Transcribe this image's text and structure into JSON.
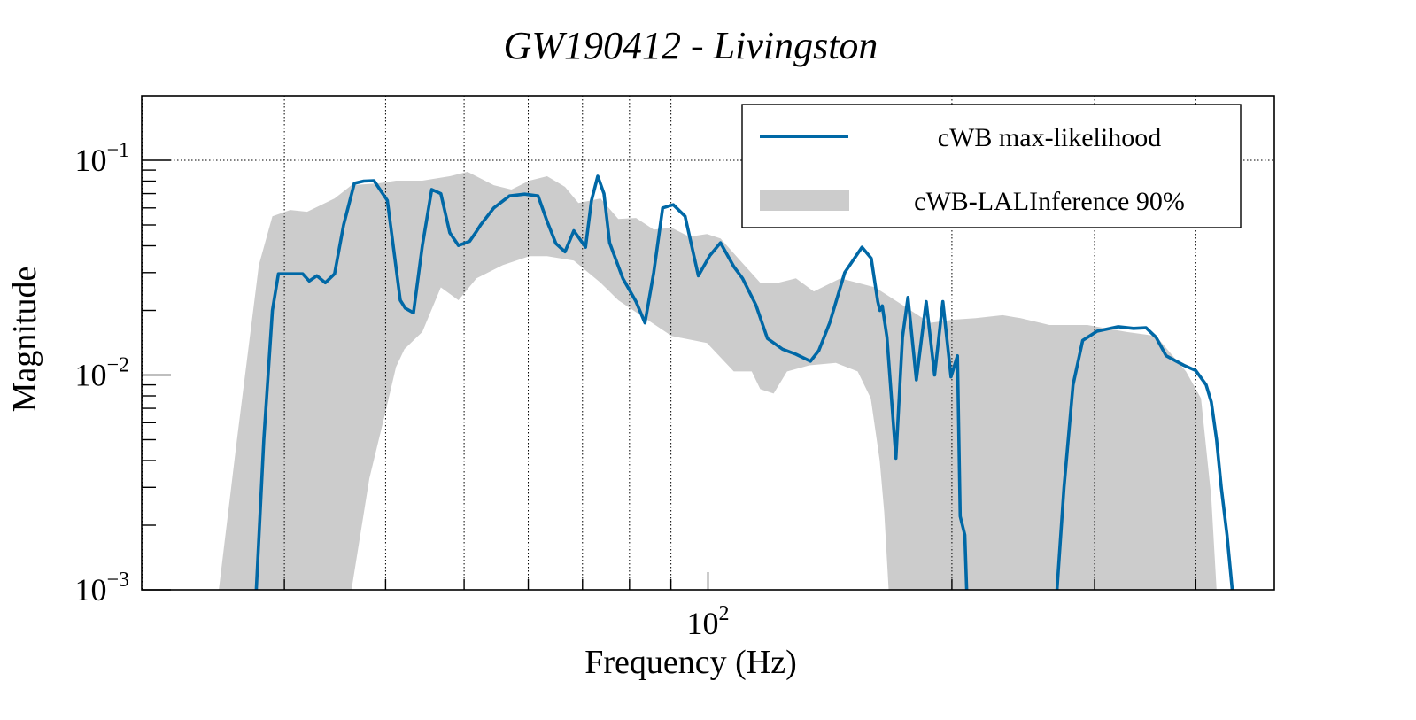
{
  "chart_data": {
    "type": "line",
    "title": "GW190412 - Livingston",
    "xlabel": "Frequency (Hz)",
    "ylabel": "Magnitude",
    "xscale": "log",
    "yscale": "log",
    "xlim": [
      20,
      500
    ],
    "ylim": [
      0.001,
      0.2
    ],
    "grid": true,
    "x_major_ticks": [
      {
        "value": 100,
        "base": "10",
        "exp": "2"
      }
    ],
    "x_minor_ticks": [
      20,
      30,
      40,
      50,
      60,
      70,
      80,
      90,
      200,
      300,
      400,
      500
    ],
    "y_major_ticks": [
      {
        "value": 0.1,
        "base": "10",
        "exp": "−1"
      },
      {
        "value": 0.01,
        "base": "10",
        "exp": "−2"
      },
      {
        "value": 0.001,
        "base": "10",
        "exp": "−3"
      }
    ],
    "y_minor_ticks": [
      0.002,
      0.003,
      0.004,
      0.005,
      0.006,
      0.007,
      0.008,
      0.009,
      0.02,
      0.03,
      0.04,
      0.05,
      0.06,
      0.07,
      0.08,
      0.09
    ],
    "legend_position": "top-right",
    "legend": [
      {
        "label": "cWB max-likelihood",
        "type": "line",
        "color": "#0068a6"
      },
      {
        "label": "cWB-LALInference 90%",
        "type": "band",
        "color": "#cccccc"
      }
    ],
    "series": [
      {
        "name": "cWB max-likelihood",
        "type": "line",
        "color": "#0068a6",
        "x": [
          27.7,
          28.3,
          29.0,
          29.5,
          31.6,
          32.2,
          32.9,
          33.7,
          34.6,
          35.5,
          36.6,
          37.6,
          38.7,
          40.2,
          41.7,
          42.3,
          43.3,
          44.4,
          45.6,
          46.8,
          48.0,
          49.2,
          50.8,
          51.8,
          52.4,
          54.4,
          56.9,
          59.4,
          61.7,
          63.3,
          64.9,
          66.6,
          68.3,
          70.6,
          71.8,
          73.1,
          74.4,
          75.6,
          78.5,
          81.5,
          83.6,
          85.7,
          87.9,
          90.6,
          93.7,
          97.3,
          100.5,
          103.6,
          107.6,
          110.3,
          114.6,
          118.4,
          123.6,
          128.4,
          133.8,
          137.0,
          141.3,
          147.5,
          154.9,
          159.0,
          162.0,
          163.0,
          164.1,
          166.3,
          170.6,
          173.8,
          176.5,
          180.8,
          185.9,
          190.4,
          194.9,
          199.5,
          203.2,
          204.8,
          207.5,
          208.6
        ],
        "y": [
          0.001,
          0.005,
          0.02,
          0.0296,
          0.0296,
          0.0274,
          0.029,
          0.0269,
          0.0296,
          0.05,
          0.0781,
          0.08,
          0.0804,
          0.065,
          0.0223,
          0.0205,
          0.0195,
          0.04,
          0.0731,
          0.07,
          0.046,
          0.0401,
          0.042,
          0.0467,
          0.05,
          0.06,
          0.0683,
          0.0696,
          0.0683,
          0.052,
          0.041,
          0.0375,
          0.047,
          0.0394,
          0.065,
          0.0843,
          0.07,
          0.0413,
          0.0282,
          0.022,
          0.0175,
          0.03,
          0.06,
          0.0621,
          0.0549,
          0.029,
          0.036,
          0.0413,
          0.032,
          0.0282,
          0.0212,
          0.0148,
          0.0132,
          0.0125,
          0.0116,
          0.013,
          0.0175,
          0.03,
          0.0394,
          0.035,
          0.022,
          0.02,
          0.021,
          0.015,
          0.0041,
          0.015,
          0.023,
          0.0095,
          0.022,
          0.01,
          0.022,
          0.0098,
          0.0123,
          0.0022,
          0.0018,
          0.001
        ]
      },
      {
        "name": "cWB max-likelihood (high-frequency lobe)",
        "type": "line",
        "color": "#0068a6",
        "x": [
          269.6,
          275.0,
          282.2,
          290.0,
          302.1,
          320.9,
          335.0,
          347.2,
          357.2,
          367.6,
          386.7,
          400.0,
          411.9,
          418.0,
          424.3,
          430.0,
          437.1,
          443.7
        ],
        "y": [
          0.001,
          0.003,
          0.009,
          0.0145,
          0.016,
          0.0168,
          0.0165,
          0.0166,
          0.015,
          0.0123,
          0.0111,
          0.0105,
          0.009,
          0.0075,
          0.005,
          0.003,
          0.0018,
          0.001
        ]
      },
      {
        "name": "cWB-LALInference 90%",
        "type": "band",
        "color": "#cccccc",
        "upper": {
          "x": [
            24.9,
            26.2,
            27.9,
            29.0,
            30.5,
            32.0,
            34.6,
            36.3,
            39.2,
            41.2,
            44.4,
            48.0,
            50.5,
            54.4,
            57.2,
            60.2,
            63.3,
            66.6,
            69.2,
            73.7,
            77.5,
            81.5,
            85.7,
            90.2,
            94.8,
            99.7,
            103.6,
            110.3,
            116.0,
            122.1,
            128.4,
            135.1,
            145.7,
            160.8,
            173.8,
            187.9,
            200.6,
            214.0,
            231.0,
            243.1,
            263.9,
            294.0,
            328.1,
            357.2,
            388.9,
            405.9,
            418.0,
            424.3
          ],
          "y": [
            0.001,
            0.0049,
            0.0325,
            0.0549,
            0.0587,
            0.0576,
            0.0664,
            0.0766,
            0.0781,
            0.0804,
            0.0804,
            0.0843,
            0.0884,
            0.0766,
            0.0731,
            0.0804,
            0.0843,
            0.0752,
            0.0633,
            0.0664,
            0.0533,
            0.0539,
            0.0476,
            0.0485,
            0.0441,
            0.0454,
            0.0433,
            0.0332,
            0.0269,
            0.0269,
            0.0282,
            0.0245,
            0.0282,
            0.0256,
            0.0212,
            0.0175,
            0.0181,
            0.0184,
            0.019,
            0.0184,
            0.0171,
            0.0171,
            0.0159,
            0.0152,
            0.0104,
            0.0078,
            0.0027,
            0.001
          ]
        },
        "lower": {
          "x": [
            36.3,
            38.2,
            39.9,
            41.2,
            42.2,
            44.4,
            46.8,
            49.2,
            51.8,
            55.8,
            60.2,
            63.3,
            68.3,
            73.7,
            77.5,
            83.6,
            90.2,
            99.7,
            107.6,
            113.2,
            116.0,
            120.5,
            125.2,
            133.4,
            143.8,
            153.0,
            158.8,
            162.9,
            165.0,
            167.1
          ],
          "y": [
            0.001,
            0.0033,
            0.0065,
            0.0109,
            0.0132,
            0.0159,
            0.0256,
            0.0223,
            0.0282,
            0.0325,
            0.0358,
            0.0358,
            0.0341,
            0.0269,
            0.0223,
            0.0184,
            0.0152,
            0.0141,
            0.0104,
            0.0104,
            0.0086,
            0.0082,
            0.0104,
            0.0111,
            0.0114,
            0.0104,
            0.0078,
            0.004,
            0.0023,
            0.001
          ]
        }
      }
    ]
  }
}
